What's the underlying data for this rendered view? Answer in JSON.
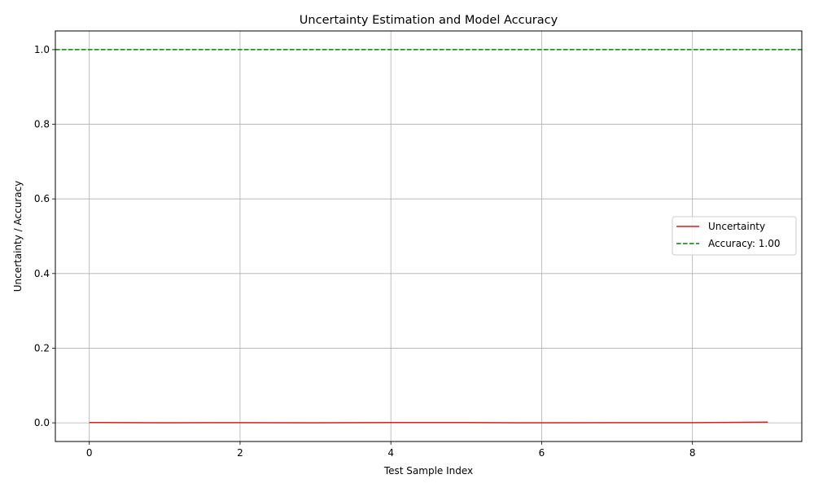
{
  "chart_data": {
    "type": "line",
    "title": "Uncertainty Estimation and Model Accuracy",
    "xlabel": "Test Sample Index",
    "ylabel": "Uncertainty / Accuracy",
    "xlim": [
      -0.45,
      9.45
    ],
    "ylim": [
      -0.05,
      1.05
    ],
    "xticks": [
      0,
      2,
      4,
      6,
      8
    ],
    "xtick_labels": [
      "0",
      "2",
      "4",
      "6",
      "8"
    ],
    "yticks": [
      0.0,
      0.2,
      0.4,
      0.6,
      0.8,
      1.0
    ],
    "ytick_labels": [
      "0.0",
      "0.2",
      "0.4",
      "0.6",
      "0.8",
      "1.0"
    ],
    "grid": true,
    "legend_position": "center-right",
    "series": [
      {
        "name": "Uncertainty",
        "style": "solid",
        "color": "#e41a1c",
        "x": [
          0,
          1,
          2,
          3,
          4,
          5,
          6,
          7,
          8,
          9
        ],
        "y": [
          0.0008,
          0.0002,
          0.0006,
          0.0002,
          0.0007,
          0.0008,
          0.0001,
          0.0006,
          0.0005,
          0.0018
        ]
      }
    ],
    "reference_lines": [
      {
        "name": "Accuracy: 1.00",
        "orientation": "horizontal",
        "y": 1.0,
        "style": "dashed",
        "color": "#008000"
      }
    ]
  }
}
